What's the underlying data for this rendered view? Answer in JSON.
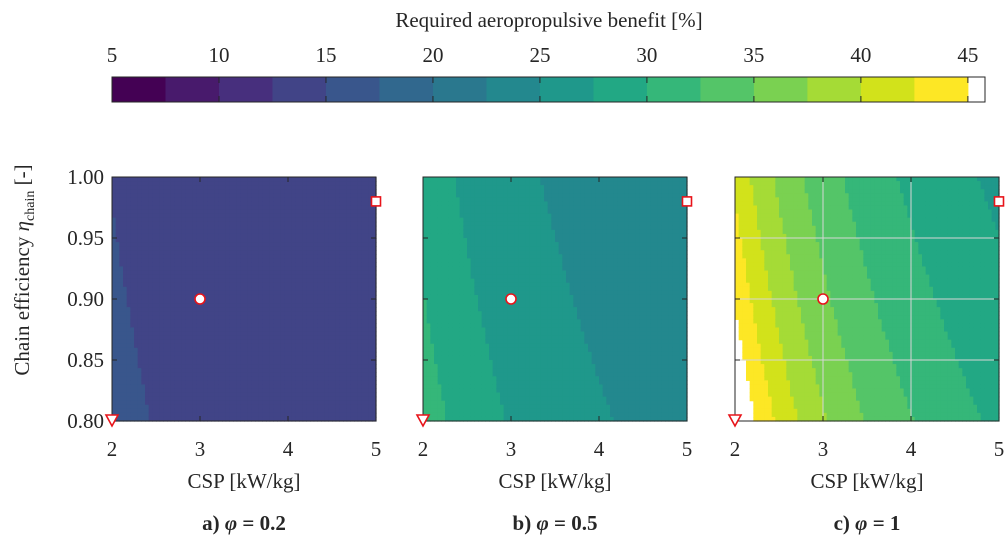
{
  "chart_data": {
    "type": "contour",
    "colorbar": {
      "title": "Required aeropropulsive benefit [%]",
      "ticks": [
        "5",
        "10",
        "15",
        "20",
        "25",
        "30",
        "35",
        "40",
        "45"
      ],
      "levels": [
        5,
        7.5,
        10,
        12.5,
        15,
        17.5,
        20,
        22.5,
        25,
        27.5,
        30,
        32.5,
        35,
        37.5,
        40,
        42.5,
        45
      ],
      "range": [
        5,
        45
      ],
      "colors": [
        "#440154",
        "#481a6c",
        "#472f7d",
        "#414487",
        "#39568c",
        "#31688e",
        "#2a788e",
        "#23888e",
        "#1f988b",
        "#22a884",
        "#35b779",
        "#54c568",
        "#7ad151",
        "#a5db36",
        "#d2e21b",
        "#fde725"
      ]
    },
    "x_axis": {
      "label": "CSP [kW/kg]",
      "ticks": [
        "2",
        "3",
        "4",
        "5"
      ],
      "range": [
        2,
        5
      ]
    },
    "y_axis": {
      "label_main": "Chain efficiency",
      "label_symbol": "η",
      "label_sub": "chain",
      "label_unit": "[-]",
      "ticks": [
        "0.80",
        "0.85",
        "0.90",
        "0.95",
        "1.00"
      ],
      "range": [
        0.8,
        1.0
      ]
    },
    "panels": [
      {
        "caption_prefix": "a)",
        "caption_symbol": "φ",
        "caption_value": "= 0.2",
        "phi": 0.2,
        "grid": false,
        "model": {
          "base": 12.5,
          "scale": 8.0,
          "max": 45
        },
        "markers": [
          {
            "shape": "circle",
            "x": 3.0,
            "y": 0.9
          },
          {
            "shape": "square",
            "x": 5.0,
            "y": 0.98
          },
          {
            "shape": "triangle",
            "x": 2.0,
            "y": 0.8
          }
        ]
      },
      {
        "caption_prefix": "b)",
        "caption_symbol": "φ",
        "caption_value": "= 0.5",
        "phi": 0.5,
        "grid": false,
        "model": {
          "base": 23.0,
          "scale": 20.0,
          "max": 45
        },
        "markers": [
          {
            "shape": "circle",
            "x": 3.0,
            "y": 0.9
          },
          {
            "shape": "square",
            "x": 5.0,
            "y": 0.98
          },
          {
            "shape": "triangle",
            "x": 2.0,
            "y": 0.8
          }
        ]
      },
      {
        "caption_prefix": "c)",
        "caption_symbol": "φ",
        "caption_value": "= 1",
        "phi": 1,
        "grid": true,
        "model": {
          "base": 27.0,
          "scale": 50.0,
          "max": 45
        },
        "markers": [
          {
            "shape": "circle",
            "x": 3.0,
            "y": 0.9
          },
          {
            "shape": "square",
            "x": 5.0,
            "y": 0.98
          },
          {
            "shape": "triangle",
            "x": 2.0,
            "y": 0.8
          }
        ]
      }
    ]
  }
}
